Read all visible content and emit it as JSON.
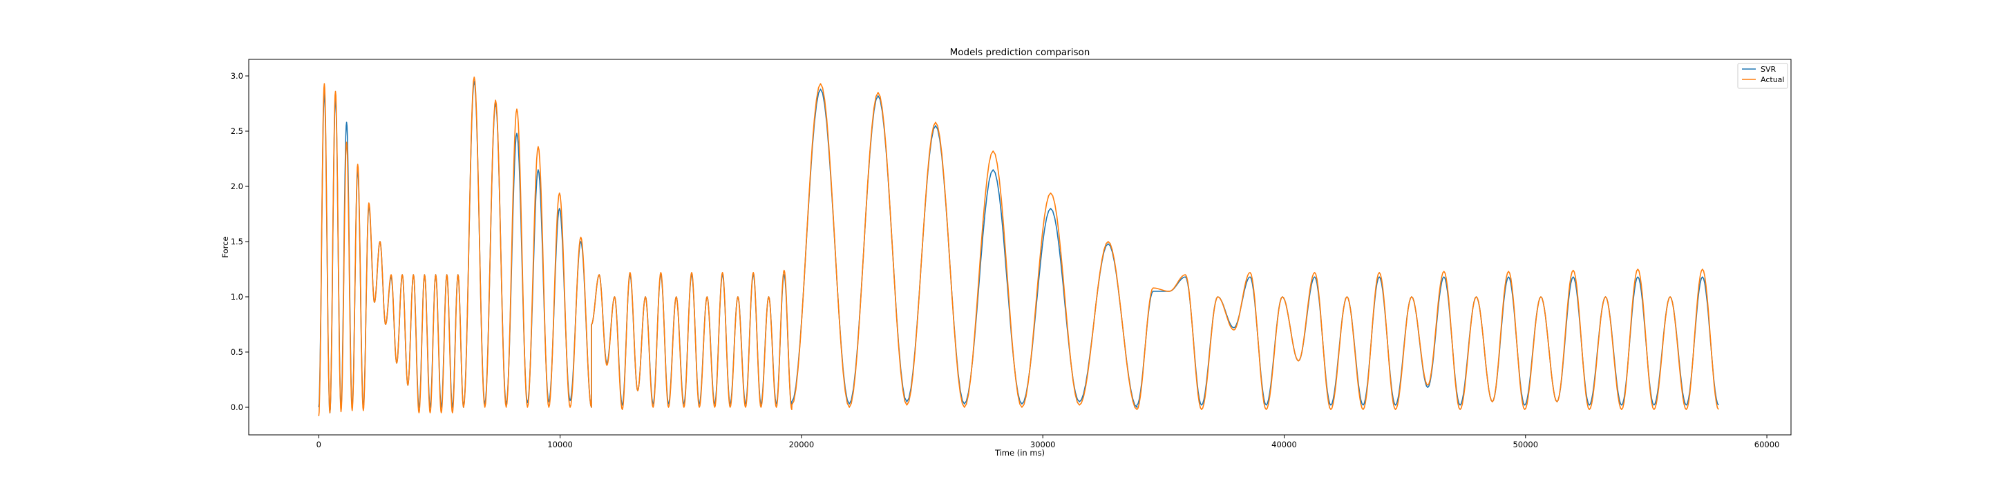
{
  "chart_data": {
    "type": "line",
    "title": "Models prediction comparison",
    "xlabel": "Time (in ms)",
    "ylabel": "Force",
    "xlim": [
      -2900,
      61000
    ],
    "ylim": [
      -0.25,
      3.15
    ],
    "xticks": [
      0,
      10000,
      20000,
      30000,
      40000,
      50000,
      60000
    ],
    "yticks": [
      0.0,
      0.5,
      1.0,
      1.5,
      2.0,
      2.5,
      3.0
    ],
    "xtick_labels": [
      "0",
      "10000",
      "20000",
      "30000",
      "40000",
      "50000",
      "60000"
    ],
    "ytick_labels": [
      "0.0",
      "0.5",
      "1.0",
      "1.5",
      "2.0",
      "2.5",
      "3.0"
    ],
    "legend": {
      "placement": "upper right"
    },
    "grid": false,
    "series": [
      {
        "name": "SVR",
        "color": "#1f77b4",
        "segments": [
          {
            "t0": 0,
            "t1": 6000,
            "peaks": [
              2.85,
              2.8,
              2.58,
              2.15,
              1.82,
              1.5,
              1.18,
              1.2,
              1.2,
              1.2,
              1.2,
              1.2,
              1.2
            ],
            "mins": [
              0.0,
              -0.05,
              0.0,
              0.0,
              0.0,
              0.95,
              0.75,
              0.4,
              0.2,
              0.0,
              0.0,
              0.0,
              0.0
            ],
            "low": 0.0
          },
          {
            "t0": 6000,
            "t1": 11300,
            "peaks": [
              2.95,
              2.75,
              2.48,
              2.15,
              1.8,
              1.5
            ],
            "mins": [
              0.02,
              0.03,
              0.03,
              0.04,
              0.05,
              0.06
            ],
            "low": 0.0
          },
          {
            "t0": 11300,
            "t1": 19600,
            "peaks": [
              1.2,
              1.0,
              1.2,
              1.0,
              1.2,
              1.0,
              1.2,
              1.0,
              1.2,
              1.0,
              1.2,
              1.0,
              1.2
            ],
            "mins": [
              0.75,
              0.4,
              0.02,
              0.15,
              0.03,
              0.03,
              0.03,
              0.03,
              0.03,
              0.03,
              0.03,
              0.03,
              0.03
            ],
            "low": 0.0
          },
          {
            "t0": 19600,
            "t1": 33900,
            "peaks": [
              2.88,
              2.82,
              2.55,
              2.15,
              1.8,
              1.48
            ],
            "mins": [
              0.05,
              0.03,
              0.05,
              0.03,
              0.03,
              0.05
            ],
            "low": 0.0
          },
          {
            "t0": 33900,
            "t1": 58000,
            "peaks": [
              1.05,
              1.18,
              1.0,
              1.18,
              1.0,
              1.18,
              1.0,
              1.18,
              1.0,
              1.18,
              1.0,
              1.18,
              1.0,
              1.18,
              1.0,
              1.18,
              1.0,
              1.18
            ],
            "mins": [
              0.02,
              1.05,
              0.02,
              0.72,
              0.02,
              0.42,
              0.02,
              0.02,
              0.02,
              0.18,
              0.02,
              0.05,
              0.02,
              0.05,
              0.02,
              0.02,
              0.02,
              0.02
            ],
            "low": 0.02
          }
        ]
      },
      {
        "name": "Actual",
        "color": "#ff7f0e",
        "segments": [
          {
            "t0": 0,
            "t1": 6000,
            "peaks": [
              2.93,
              2.86,
              2.4,
              2.2,
              1.85,
              1.5,
              1.2,
              1.2,
              1.2,
              1.2,
              1.2,
              1.2,
              1.2
            ],
            "mins": [
              -0.08,
              -0.05,
              -0.04,
              -0.03,
              -0.03,
              0.95,
              0.75,
              0.4,
              0.2,
              -0.05,
              -0.05,
              -0.05,
              -0.05
            ],
            "low": 0.0
          },
          {
            "t0": 6000,
            "t1": 11300,
            "peaks": [
              2.99,
              2.78,
              2.7,
              2.36,
              1.94,
              1.54
            ],
            "mins": [
              0.0,
              0.0,
              0.0,
              0.0,
              0.0,
              0.0
            ],
            "low": 0.0
          },
          {
            "t0": 11300,
            "t1": 19600,
            "peaks": [
              1.2,
              1.0,
              1.22,
              1.0,
              1.22,
              1.0,
              1.22,
              1.0,
              1.22,
              1.0,
              1.22,
              1.0,
              1.24
            ],
            "mins": [
              0.75,
              0.38,
              -0.02,
              0.15,
              0.0,
              0.0,
              0.0,
              0.0,
              0.0,
              0.0,
              0.0,
              0.0,
              0.0
            ],
            "low": -0.02
          },
          {
            "t0": 19600,
            "t1": 33900,
            "peaks": [
              2.93,
              2.85,
              2.58,
              2.32,
              1.94,
              1.5
            ],
            "mins": [
              0.02,
              0.0,
              0.02,
              0.0,
              0.0,
              0.02
            ],
            "low": -0.02
          },
          {
            "t0": 33900,
            "t1": 58000,
            "peaks": [
              1.08,
              1.2,
              1.0,
              1.22,
              1.0,
              1.22,
              1.0,
              1.22,
              1.0,
              1.23,
              1.0,
              1.23,
              1.0,
              1.24,
              1.0,
              1.25,
              1.0,
              1.25
            ],
            "mins": [
              -0.02,
              1.05,
              -0.02,
              0.7,
              -0.02,
              0.42,
              -0.02,
              -0.02,
              -0.02,
              0.2,
              -0.02,
              0.05,
              -0.02,
              0.05,
              -0.02,
              -0.02,
              -0.02,
              -0.02
            ],
            "low": -0.02
          }
        ]
      }
    ]
  }
}
